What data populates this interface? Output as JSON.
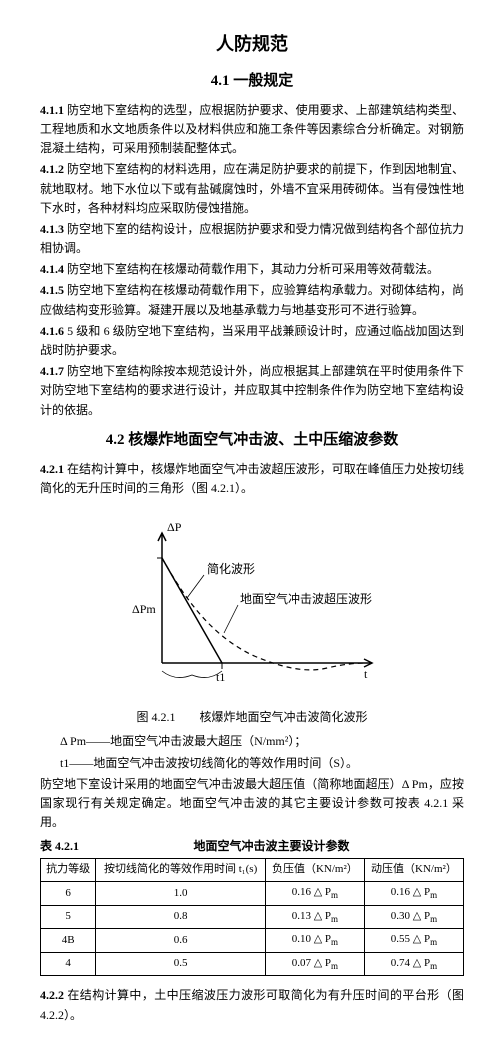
{
  "title": "人防规范",
  "section41": {
    "heading": "4.1 一般规定",
    "clauses": [
      {
        "num": "4.1.1",
        "text": "防空地下室结构的选型，应根据防护要求、使用要求、上部建筑结构类型、工程地质和水文地质条件以及材料供应和施工条件等因素综合分析确定。对钢筋混凝土结构，可采用预制装配整体式。"
      },
      {
        "num": "4.1.2",
        "text": "防空地下室结构的材料选用，应在满足防护要求的前提下，作到因地制宜、就地取材。地下水位以下或有盐碱腐蚀时，外墙不宜采用砖砌体。当有侵蚀性地下水时，各种材料均应采取防侵蚀措施。"
      },
      {
        "num": "4.1.3",
        "text": "防空地下室的结构设计，应根据防护要求和受力情况做到结构各个部位抗力相协调。"
      },
      {
        "num": "4.1.4",
        "text": "防空地下室结构在核爆动荷载作用下，其动力分析可采用等效荷载法。"
      },
      {
        "num": "4.1.5",
        "text": "防空地下室结构在核爆动荷载作用下，应验算结构承载力。对砌体结构，尚应做结构变形验算。凝建开展以及地基承载力与地基变形可不进行验算。"
      },
      {
        "num": "4.1.6",
        "text": "5 级和 6 级防空地下室结构，当采用平战兼顾设计时，应通过临战加固达到战时防护要求。"
      },
      {
        "num": "4.1.7",
        "text": "防空地下室结构除按本规范设计外，尚应根据其上部建筑在平时使用条件下对防空地下室结构的要求进行设计，并应取其中控制条件作为防空地下室结构设计的依据。"
      }
    ]
  },
  "section42": {
    "heading": "4.2 核爆炸地面空气冲击波、土中压缩波参数",
    "clause421": {
      "num": "4.2.1",
      "text": "在结构计算中，核爆炸地面空气冲击波超压波形，可取在峰值压力处按切线简化的无升压时间的三角形（图 4.2.1）。"
    },
    "clause422": {
      "num": "4.2.2",
      "text": "在结构计算中，土中压缩波压力波形可取简化为有升压时间的平台形（图 4.2.2）。"
    }
  },
  "figure": {
    "caption": "图 4.2.1　　核爆炸地面空气冲击波简化波形",
    "label1": "简化波形",
    "label2": "地面空气冲击波超压波形",
    "yaxis_top": "ΔP",
    "yaxis_mid": "ΔPm",
    "xaxis_t1": "t1",
    "xaxis_t": "t"
  },
  "notes": {
    "line1_left": "Δ Pm——地面空气冲击波最大超压（N/mm²）；",
    "line2": "t1——地面空气冲击波按切线简化的等效作用时间（S）。",
    "line3_a": "防空地下室设计采用的地面空气冲击波最大超压值（简称地面超压）Δ Pm，应按国家现行有关规定确定。地面空气冲击波的其它主要设计参数可按表 4.2.1 采用。"
  },
  "table": {
    "caption_left": "表 4.2.1",
    "caption_center": "地面空气冲击波主要设计参数",
    "headers": [
      "抗力等级",
      "按切线简化的等效作用时间 t₁(s)",
      "负压值（KN/m²）",
      "动压值（KN/m²）"
    ],
    "rows": [
      [
        "6",
        "1.0",
        "0.16 Δ Pm",
        "0.16 Δ Pm"
      ],
      [
        "5",
        "0.8",
        "0.13 Δ Pm",
        "0.30 Δ Pm"
      ],
      [
        "4B",
        "0.6",
        "0.10 Δ Pm",
        "0.55 Δ Pm"
      ],
      [
        "4",
        "0.5",
        "0.07 Δ Pm",
        "0.74 Δ Pm"
      ]
    ]
  }
}
